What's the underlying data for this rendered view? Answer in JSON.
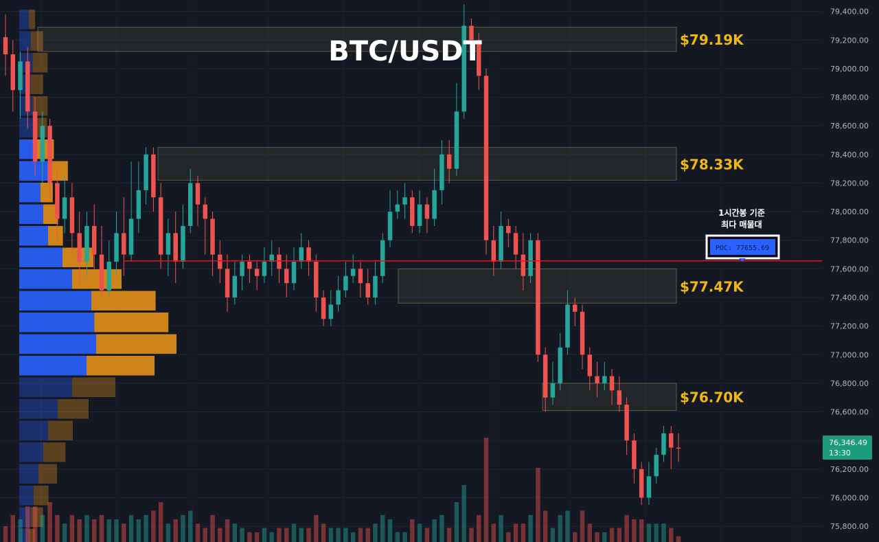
{
  "title": "BTC/USDT",
  "zone_labels": [
    "$79.19K",
    "$78.33K",
    "$77.47K",
    "$76.70K"
  ],
  "poc_annotation": [
    "1시간봉 기준",
    "최다 매물대"
  ],
  "poc_label": "POC: 77655.69",
  "price_tag": {
    "price": "76,346.49",
    "time": "13:30"
  },
  "colors": {
    "background": "#141823",
    "up": "#26a69a",
    "down": "#ef5350",
    "poc_line": "#e8121b",
    "zone_label": "#f0b90b",
    "vp_blue": "#2962ff",
    "vp_orange": "#e3901a"
  },
  "chart_data": {
    "type": "candlestick",
    "title": "BTC/USDT",
    "ylim": [
      75690,
      79480
    ],
    "y_ticks": [
      79400,
      79200,
      79000,
      78800,
      78600,
      78400,
      78200,
      78000,
      77800,
      77600,
      77400,
      77200,
      77000,
      76800,
      76600,
      76400,
      76200,
      76000,
      75800
    ],
    "y_tick_labels": [
      "79,400.00",
      "79,200.00",
      "79,000.00",
      "78,800.00",
      "78,600.00",
      "78,400.00",
      "78,200.00",
      "78,000.00",
      "77,800.00",
      "77,600.00",
      "77,400.00",
      "77,200.00",
      "77,000.00",
      "76,800.00",
      "76,600.00",
      "76,400.00",
      "76,200.00",
      "76,000.00",
      "75,800.00"
    ],
    "last_price": 76346.49,
    "poc_price": 77655.69,
    "zones": [
      {
        "label": "$79.19K",
        "low": 79120,
        "high": 79290
      },
      {
        "label": "$78.33K",
        "low": 78220,
        "high": 78450
      },
      {
        "label": "$77.47K",
        "low": 77360,
        "high": 77600
      },
      {
        "label": "$76.70K",
        "low": 76610,
        "high": 76800
      }
    ],
    "candles": [
      [
        79220,
        79100,
        79380,
        78950
      ],
      [
        79100,
        78850,
        79200,
        78700
      ],
      [
        78850,
        79050,
        79120,
        78650
      ],
      [
        79050,
        78700,
        79150,
        78580
      ],
      [
        78700,
        78350,
        78800,
        78250
      ],
      [
        78350,
        78600,
        78700,
        78200
      ],
      [
        78600,
        78200,
        78650,
        78100
      ],
      [
        78200,
        77950,
        78300,
        77800
      ],
      [
        77950,
        78100,
        78250,
        77850
      ],
      [
        78100,
        77850,
        78200,
        77700
      ],
      [
        77850,
        77650,
        78000,
        77500
      ],
      [
        77650,
        77900,
        78000,
        77550
      ],
      [
        77900,
        77700,
        78050,
        77600
      ],
      [
        77700,
        77450,
        77900,
        77400
      ],
      [
        77450,
        77650,
        77800,
        77400
      ],
      [
        77650,
        77850,
        78000,
        77550
      ],
      [
        77850,
        77700,
        78100,
        77550
      ],
      [
        77700,
        77950,
        78350,
        77650
      ],
      [
        77950,
        78150,
        78350,
        77850
      ],
      [
        78150,
        78400,
        78450,
        78050
      ],
      [
        78400,
        78100,
        78450,
        78000
      ],
      [
        78100,
        77700,
        78200,
        77600
      ],
      [
        77700,
        77850,
        77950,
        77550
      ],
      [
        77850,
        77650,
        78000,
        77500
      ],
      [
        77650,
        77900,
        78050,
        77600
      ],
      [
        77900,
        78200,
        78300,
        77850
      ],
      [
        78200,
        78050,
        78250,
        77900
      ],
      [
        78050,
        77950,
        78100,
        77700
      ],
      [
        77950,
        77700,
        78000,
        77550
      ],
      [
        77700,
        77600,
        77800,
        77500
      ],
      [
        77600,
        77400,
        77700,
        77300
      ],
      [
        77400,
        77550,
        77650,
        77350
      ],
      [
        77550,
        77650,
        77700,
        77450
      ],
      [
        77650,
        77600,
        77700,
        77500
      ],
      [
        77600,
        77550,
        77650,
        77450
      ],
      [
        77550,
        77650,
        77750,
        77500
      ],
      [
        77650,
        77700,
        77800,
        77550
      ],
      [
        77700,
        77600,
        77750,
        77500
      ],
      [
        77600,
        77500,
        77700,
        77400
      ],
      [
        77500,
        77650,
        77750,
        77450
      ],
      [
        77650,
        77750,
        77850,
        77600
      ],
      [
        77750,
        77650,
        77800,
        77550
      ],
      [
        77650,
        77400,
        77700,
        77300
      ],
      [
        77400,
        77250,
        77450,
        77200
      ],
      [
        77250,
        77350,
        77450,
        77200
      ],
      [
        77350,
        77450,
        77550,
        77300
      ],
      [
        77450,
        77550,
        77650,
        77400
      ],
      [
        77550,
        77600,
        77700,
        77500
      ],
      [
        77600,
        77500,
        77650,
        77400
      ],
      [
        77500,
        77400,
        77600,
        77350
      ],
      [
        77400,
        77550,
        77650,
        77350
      ],
      [
        77550,
        77800,
        77850,
        77500
      ],
      [
        77800,
        78000,
        78150,
        77750
      ],
      [
        78000,
        78050,
        78150,
        77950
      ],
      [
        78050,
        78100,
        78200,
        77950
      ],
      [
        78100,
        77900,
        78150,
        77850
      ],
      [
        77900,
        78050,
        78150,
        77850
      ],
      [
        78050,
        77950,
        78100,
        77850
      ],
      [
        77950,
        78150,
        78300,
        77900
      ],
      [
        78150,
        78400,
        78500,
        78050
      ],
      [
        78400,
        78300,
        78500,
        78200
      ],
      [
        78300,
        78700,
        78900,
        78250
      ],
      [
        78700,
        79300,
        79450,
        78650
      ],
      [
        79300,
        79200,
        79350,
        79100
      ],
      [
        79200,
        78950,
        79250,
        78850
      ],
      [
        78950,
        77800,
        79000,
        77700
      ],
      [
        77800,
        77650,
        77900,
        77550
      ],
      [
        77650,
        77900,
        78000,
        77600
      ],
      [
        77900,
        77850,
        77950,
        77750
      ],
      [
        77850,
        77700,
        77900,
        77600
      ],
      [
        77700,
        77550,
        77850,
        77450
      ],
      [
        77550,
        77800,
        77850,
        77500
      ],
      [
        77800,
        77000,
        77850,
        76950
      ],
      [
        77000,
        76700,
        77050,
        76600
      ],
      [
        76700,
        76800,
        76950,
        76650
      ],
      [
        76800,
        77050,
        77150,
        76750
      ],
      [
        77050,
        77350,
        77450,
        77000
      ],
      [
        77350,
        77300,
        77400,
        77200
      ],
      [
        77300,
        77000,
        77350,
        76900
      ],
      [
        77000,
        76850,
        77050,
        76750
      ],
      [
        76850,
        76800,
        76950,
        76700
      ],
      [
        76800,
        76850,
        76950,
        76750
      ],
      [
        76850,
        76750,
        76900,
        76650
      ],
      [
        76750,
        76650,
        76850,
        76600
      ],
      [
        76650,
        76400,
        76700,
        76300
      ],
      [
        76400,
        76200,
        76450,
        76100
      ],
      [
        76200,
        76000,
        76250,
        75950
      ],
      [
        76000,
        76150,
        76250,
        75950
      ],
      [
        76150,
        76300,
        76350,
        76100
      ],
      [
        76300,
        76450,
        76500,
        76250
      ],
      [
        76450,
        76350,
        76500,
        76200
      ],
      [
        76350,
        76346.49,
        76450,
        76250
      ]
    ]
  }
}
